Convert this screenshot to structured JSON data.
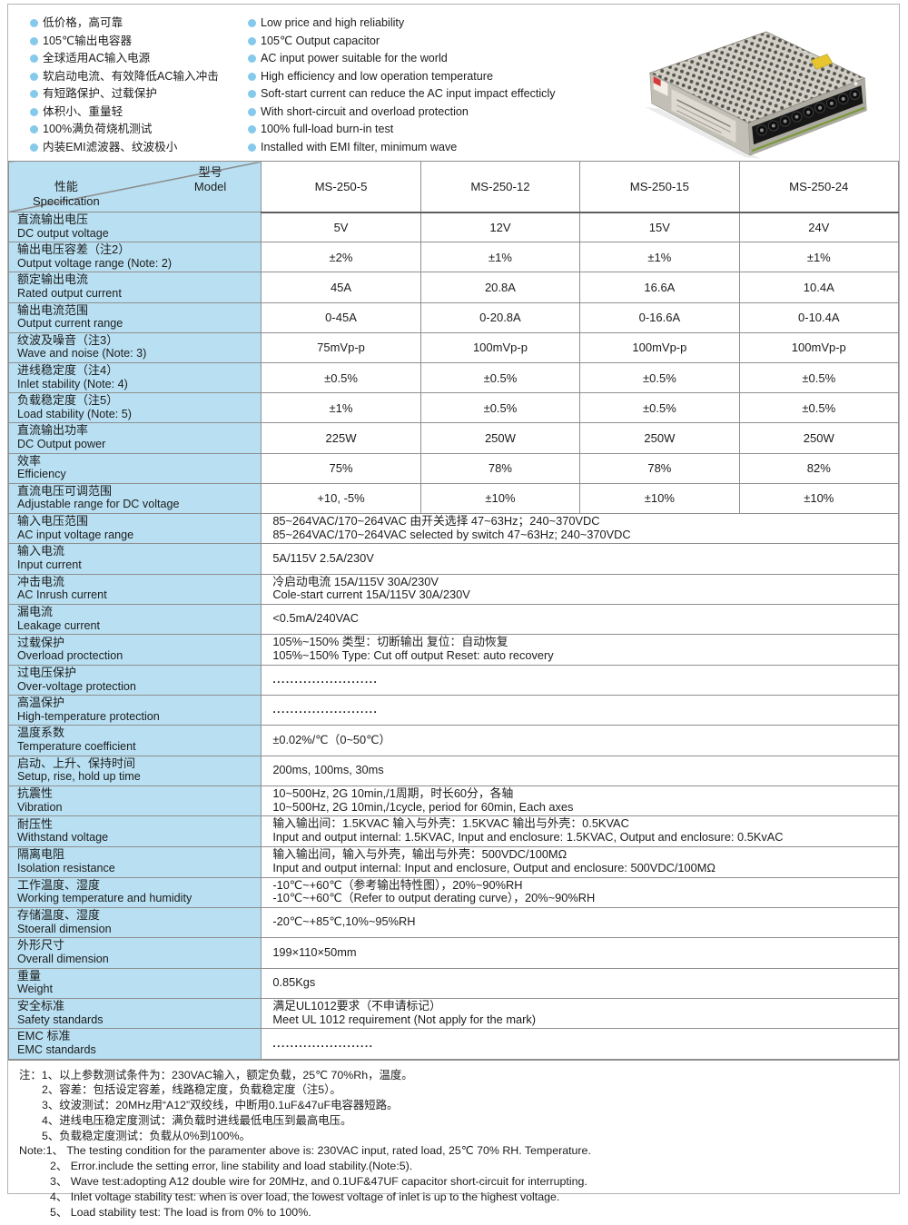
{
  "colors": {
    "label_bg": "#b9e0f2",
    "bullet": "#85c9ec",
    "table_border": "#8f8f8f",
    "outer_border": "#b3b3b3",
    "text": "#1c1c1c"
  },
  "features": {
    "cn": [
      "低价格，高可靠",
      "105℃输出电容器",
      "全球适用AC输入电源",
      "软启动电流、有效降低AC输入冲击",
      "有短路保护、过载保护",
      "体积小、重量轻",
      "100%满负荷烧机测试",
      "内装EMI滤波器、纹波极小"
    ],
    "en": [
      "Low price and high reliability",
      "105℃ Output capacitor",
      "AC input power suitable for the world",
      "High efficiency and low operation temperature",
      "Soft-start current can reduce the AC input impact effecticly",
      "With short-circuit and overload protection",
      "100% full-load burn-in test",
      "Installed with EMI filter, minimum wave"
    ]
  },
  "product_image": {
    "label": "MS-250 enclosed switching power supply photo"
  },
  "table": {
    "header": {
      "model_cn": "型号",
      "model_en": "Model",
      "spec_cn": "性能",
      "spec_en": "Specification",
      "models": [
        "MS-250-5",
        "MS-250-12",
        "MS-250-15",
        "MS-250-24"
      ]
    },
    "rows": [
      {
        "label_cn": "直流输出电压",
        "label_en": "DC output voltage",
        "values": [
          "5V",
          "12V",
          "15V",
          "24V"
        ]
      },
      {
        "label_cn": "输出电压容差（注2）",
        "label_en": "Output voltage range (Note: 2)",
        "values": [
          "±2%",
          "±1%",
          "±1%",
          "±1%"
        ]
      },
      {
        "label_cn": "额定输出电流",
        "label_en": "Rated output current",
        "values": [
          "45A",
          "20.8A",
          "16.6A",
          "10.4A"
        ]
      },
      {
        "label_cn": "输出电流范围",
        "label_en": "Output current range",
        "values": [
          "0-45A",
          "0-20.8A",
          "0-16.6A",
          "0-10.4A"
        ]
      },
      {
        "label_cn": "纹波及噪音（注3）",
        "label_en": "Wave and noise (Note: 3)",
        "values": [
          "75mVp-p",
          "100mVp-p",
          "100mVp-p",
          "100mVp-p"
        ]
      },
      {
        "label_cn": "进线稳定度（注4）",
        "label_en": "Inlet stability (Note: 4)",
        "values": [
          "±0.5%",
          "±0.5%",
          "±0.5%",
          "±0.5%"
        ]
      },
      {
        "label_cn": "负载稳定度（注5）",
        "label_en": "Load stability (Note: 5)",
        "values": [
          "±1%",
          "±0.5%",
          "±0.5%",
          "±0.5%"
        ]
      },
      {
        "label_cn": "直流输出功率",
        "label_en": "DC Output power",
        "values": [
          "225W",
          "250W",
          "250W",
          "250W"
        ]
      },
      {
        "label_cn": "效率",
        "label_en": "Efficiency",
        "values": [
          "75%",
          "78%",
          "78%",
          "82%"
        ]
      },
      {
        "label_cn": "直流电压可调范围",
        "label_en": "Adjustable range for DC voltage",
        "values": [
          "+10, -5%",
          "±10%",
          "±10%",
          "±10%"
        ]
      },
      {
        "label_cn": "输入电压范围",
        "label_en": "AC input voltage range",
        "span": [
          "85~264VAC/170~264VAC 由开关选择 47~63Hz；240~370VDC",
          "85~264VAC/170~264VAC selected by switch 47~63Hz; 240~370VDC"
        ]
      },
      {
        "label_cn": "输入电流",
        "label_en": "Input current",
        "span": [
          "5A/115V  2.5A/230V"
        ]
      },
      {
        "label_cn": "冲击电流",
        "label_en": "AC Inrush current",
        "span": [
          "冷启动电流 15A/115V 30A/230V",
          "Cole-start current 15A/115V  30A/230V"
        ]
      },
      {
        "label_cn": "漏电流",
        "label_en": "Leakage current",
        "span": [
          "<0.5mA/240VAC"
        ]
      },
      {
        "label_cn": "过载保护",
        "label_en": "Overload proctection",
        "span": [
          "105%~150% 类型：切断输出 复位：自动恢复",
          "105%~150% Type: Cut off output  Reset: auto recovery"
        ]
      },
      {
        "label_cn": "过电压保护",
        "label_en": "Over-voltage protection",
        "span": [
          "........................"
        ],
        "dots": true
      },
      {
        "label_cn": "高温保护",
        "label_en": "High-temperature protection",
        "span": [
          "........................"
        ],
        "dots": true
      },
      {
        "label_cn": "温度系数",
        "label_en": "Temperature coefficient",
        "span": [
          "±0.02%/℃（0~50℃）"
        ]
      },
      {
        "label_cn": "启动、上升、保持时间",
        "label_en": "Setup, rise, hold up time",
        "span": [
          "200ms, 100ms, 30ms"
        ]
      },
      {
        "label_cn": "抗震性",
        "label_en": "Vibration",
        "span": [
          "10~500Hz, 2G 10min,/1周期，时长60分，各轴",
          "10~500Hz, 2G 10min,/1cycle, period for 60min, Each axes"
        ]
      },
      {
        "label_cn": "耐压性",
        "label_en": "Withstand voltage",
        "span": [
          "输入输出间：1.5KVAC 输入与外壳：1.5KVAC 输出与外壳：0.5KVAC",
          "Input and output internal: 1.5KVAC, Input and enclosure: 1.5KVAC, Output and enclosure: 0.5KvAC"
        ]
      },
      {
        "label_cn": "隔离电阻",
        "label_en": "Isolation resistance",
        "span": [
          "输入输出间，输入与外壳，输出与外壳：500VDC/100MΩ",
          "Input and output internal: Input and enclosure, Output and enclosure: 500VDC/100MΩ"
        ]
      },
      {
        "label_cn": "工作温度、湿度",
        "label_en": "Working temperature and humidity",
        "span": [
          "-10℃~+60℃（参考输出特性图），20%~90%RH",
          "-10℃~+60℃（Refer to output derating curve），20%~90%RH"
        ]
      },
      {
        "label_cn": "存储温度、湿度",
        "label_en": "Stoerall dimension",
        "span": [
          "-20℃~+85℃,10%~95%RH"
        ]
      },
      {
        "label_cn": "外形尺寸",
        "label_en": "Overall dimension",
        "span": [
          "199×110×50mm"
        ]
      },
      {
        "label_cn": "重量",
        "label_en": "Weight",
        "span": [
          "0.85Kgs"
        ]
      },
      {
        "label_cn": "安全标准",
        "label_en": "Safety standards",
        "span": [
          "满足UL1012要求（不申请标记）",
          "Meet UL 1012 requirement (Not apply for the mark)"
        ]
      },
      {
        "label_cn": "EMC 标准",
        "label_en": "EMC standards",
        "span": [
          "......................."
        ],
        "dots": true
      }
    ]
  },
  "notes": {
    "cn": [
      "注：1、以上参数测试条件为：230VAC输入，额定负载，25℃ 70%Rh，温度。",
      "2、容差：包括设定容差，线路稳定度，负载稳定度（注5）。",
      "3、纹波测试：20MHz用“A12”双绞线，中断用0.1uF&47uF电容器短路。",
      "4、进线电压稳定度测试：满负载时进线最低电压到最高电压。",
      "5、负载稳定度测试：负载从0%到100%。"
    ],
    "en": [
      "Note:1、 The testing condition for the paramenter above is: 230VAC input, rated load, 25℃ 70% RH. Temperature.",
      "2、 Error.include the setting error, line stability and load stability.(Note:5).",
      "3、 Wave test:adopting  A12  double wire for 20MHz, and 0.1UF&47UF capacitor short-circuit for interrupting.",
      "4、 Inlet voltage stability test: when is over load, the lowest voltage of inlet is up to the highest voltage.",
      "5、 Load stability test: The load is from 0% to 100%."
    ]
  }
}
